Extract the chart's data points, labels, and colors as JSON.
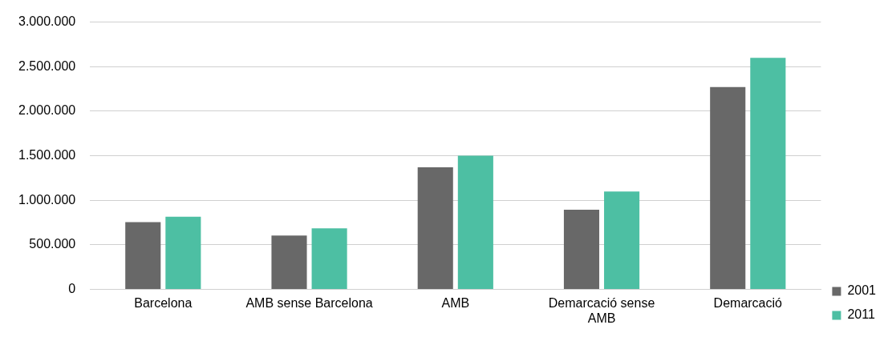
{
  "chart_data": {
    "type": "bar",
    "categories": [
      "Barcelona",
      "AMB sense Barcelona",
      "AMB",
      "Demarcació sense AMB",
      "Demarcació"
    ],
    "series": [
      {
        "name": "2001",
        "color": "#686868",
        "values": [
          755000,
          605000,
          1370000,
          895000,
          2270000
        ]
      },
      {
        "name": "2011",
        "color": "#4dbfa3",
        "values": [
          815000,
          685000,
          1500000,
          1100000,
          2600000
        ]
      }
    ],
    "ylim": [
      0,
      3000000
    ],
    "yticks": [
      {
        "value": 0,
        "label": "0"
      },
      {
        "value": 500000,
        "label": "500.000"
      },
      {
        "value": 1000000,
        "label": "1.000.000"
      },
      {
        "value": 1500000,
        "label": "1.500.000"
      },
      {
        "value": 2000000,
        "label": "2.000.000"
      },
      {
        "value": 2500000,
        "label": "2.500.000"
      },
      {
        "value": 3000000,
        "label": "3.000.000"
      }
    ],
    "grid": "y",
    "legend": "right"
  }
}
